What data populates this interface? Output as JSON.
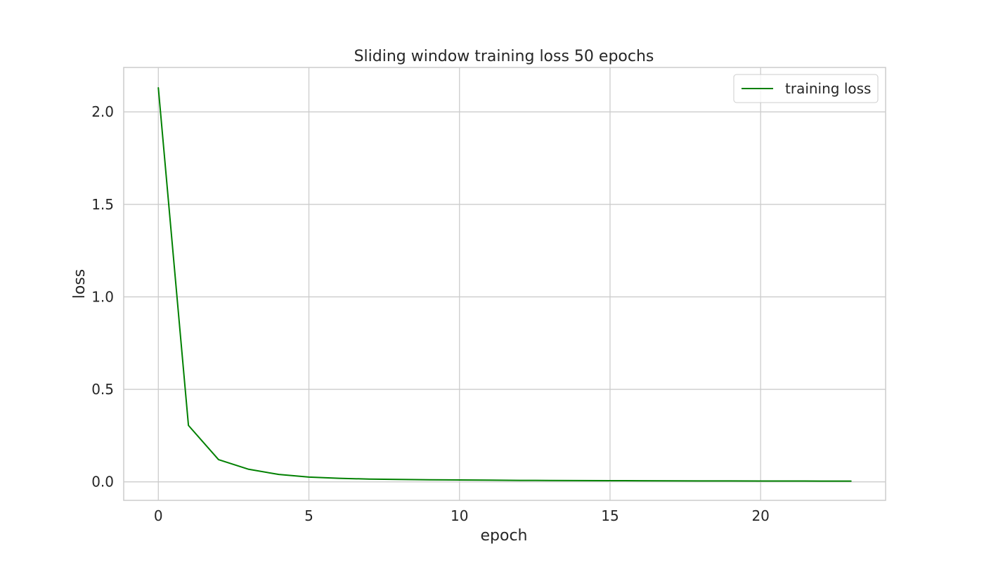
{
  "chart_data": {
    "type": "line",
    "title": "Sliding window training loss 50 epochs",
    "xlabel": "epoch",
    "ylabel": "loss",
    "xlim": [
      -1.15,
      24.15
    ],
    "ylim": [
      -0.1,
      2.24
    ],
    "xticks": [
      0,
      5,
      10,
      15,
      20
    ],
    "xtick_labels": [
      "0",
      "5",
      "10",
      "15",
      "20"
    ],
    "yticks": [
      0.0,
      0.5,
      1.0,
      1.5,
      2.0
    ],
    "ytick_labels": [
      "0.0",
      "0.5",
      "1.0",
      "1.5",
      "2.0"
    ],
    "grid": true,
    "legend_position": "top-right",
    "series": [
      {
        "name": "training loss",
        "color": "#008000",
        "x": [
          0,
          1,
          2,
          3,
          4,
          5,
          6,
          7,
          8,
          9,
          10,
          11,
          12,
          13,
          14,
          15,
          16,
          17,
          18,
          19,
          20,
          21,
          22,
          23
        ],
        "y": [
          2.13,
          0.305,
          0.12,
          0.068,
          0.04,
          0.026,
          0.019,
          0.015,
          0.013,
          0.011,
          0.01,
          0.009,
          0.008,
          0.0075,
          0.007,
          0.0065,
          0.006,
          0.0055,
          0.005,
          0.005,
          0.0045,
          0.0045,
          0.004,
          0.004
        ]
      }
    ]
  }
}
